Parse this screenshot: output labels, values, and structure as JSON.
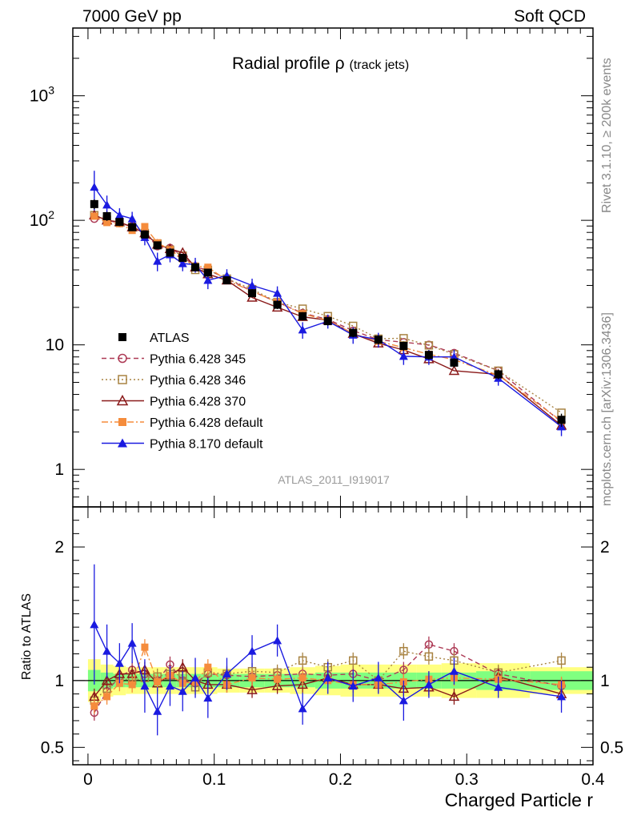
{
  "header": {
    "left": "7000 GeV pp",
    "right": "Soft QCD"
  },
  "sidebar": {
    "top": "Rivet 3.1.10, ≥ 200k events",
    "bottom": "mcplots.cern.ch [arXiv:1306.3436]"
  },
  "colors": {
    "atlas": "#000000",
    "p345": "#ad3a55",
    "p346": "#a88342",
    "p370": "#8a1a1a",
    "p6def": "#f58c3c",
    "p8def": "#1a1ae0",
    "band_yellow": "#ffff80",
    "band_green": "#80ff80"
  },
  "chart_data": [
    {
      "type": "line",
      "title": "Radial profile",
      "title_symbol": "ρ",
      "title_suffix": "(track jets)",
      "xlabel": "Charged Particle r",
      "ylabel": "",
      "yscale": "log",
      "xlim": [
        -0.012,
        0.4
      ],
      "ylim": [
        0.5,
        3500
      ],
      "x_ticks": [
        "0",
        "0.1",
        "0.2",
        "0.3",
        "0.4"
      ],
      "y_ticks": [
        {
          "value": 1,
          "label": "1"
        },
        {
          "value": 10,
          "label": "10"
        },
        {
          "value": 100,
          "label": "10",
          "exp": "2"
        },
        {
          "value": 1000,
          "label": "10",
          "exp": "3"
        }
      ],
      "watermark": "ATLAS_2011_I919017",
      "x": [
        0.005,
        0.015,
        0.025,
        0.035,
        0.045,
        0.055,
        0.065,
        0.075,
        0.085,
        0.095,
        0.11,
        0.13,
        0.15,
        0.17,
        0.19,
        0.21,
        0.23,
        0.25,
        0.27,
        0.29,
        0.325,
        0.375
      ],
      "series": [
        {
          "key": "atlas",
          "name": "ATLAS",
          "marker": "square-filled",
          "line": "none",
          "values": [
            135,
            108,
            97,
            88,
            77,
            63,
            55,
            50,
            42,
            38,
            33,
            26,
            21,
            17,
            15.5,
            12.5,
            11,
            9.8,
            8.3,
            7.2,
            5.8,
            2.5
          ],
          "err": [
            12,
            9,
            7,
            6,
            5,
            4.5,
            4,
            3.5,
            3,
            2.7,
            2.3,
            1.9,
            1.6,
            1.3,
            1.2,
            1,
            0.9,
            0.8,
            0.7,
            0.6,
            0.5,
            0.3
          ]
        },
        {
          "key": "p345",
          "name": "Pythia 6.428 345",
          "marker": "circle-open",
          "line": "dashed",
          "values": [
            103,
            100,
            95,
            90,
            78,
            62,
            60,
            52,
            42,
            40,
            34,
            27,
            22,
            18,
            16,
            13,
            11,
            10.5,
            10,
            8.6,
            6.2,
            2.4
          ],
          "ratio": [
            0.76,
            0.92,
            1.03,
            1.08,
            1.05,
            1.0,
            1.12,
            1.0,
            0.98,
            1.05,
            1.04,
            1.03,
            1.04,
            1.05,
            1.04,
            1.05,
            1.0,
            1.08,
            1.27,
            1.22,
            1.05,
            0.96
          ]
        },
        {
          "key": "p346",
          "name": "Pythia 6.428 346",
          "marker": "square-open",
          "line": "dotted",
          "values": [
            110,
            101,
            96,
            88,
            79,
            65,
            58,
            52,
            40,
            40,
            34,
            28,
            22,
            19.5,
            17,
            14.2,
            11.2,
            11.3,
            9.9,
            8.4,
            6.2,
            2.85
          ],
          "ratio": [
            0.85,
            0.94,
            1.02,
            1.0,
            1.02,
            1.03,
            1.05,
            1.04,
            0.95,
            1.06,
            1.05,
            1.07,
            1.06,
            1.15,
            1.1,
            1.15,
            1.0,
            1.22,
            1.18,
            1.15,
            1.06,
            1.15
          ]
        },
        {
          "key": "p370",
          "name": "Pythia 6.428 370",
          "marker": "triangle-open",
          "line": "solid",
          "values": [
            110,
            100,
            97,
            88,
            79,
            64,
            59,
            55,
            42,
            37,
            33,
            24,
            20,
            16.8,
            15.8,
            12.3,
            10.3,
            9.1,
            7.7,
            6.2,
            5.8,
            2.25
          ],
          "ratio": [
            0.88,
            1.0,
            1.05,
            1.05,
            1.08,
            0.98,
            1.04,
            1.1,
            1.0,
            0.97,
            0.97,
            0.93,
            0.96,
            0.97,
            1.02,
            0.97,
            0.97,
            0.94,
            0.95,
            0.88,
            1.03,
            0.9
          ]
        },
        {
          "key": "p6def",
          "name": "Pythia 6.428 default",
          "marker": "square-filled",
          "line": "dashdot",
          "values": [
            108,
            96,
            94,
            83,
            89,
            66,
            58,
            49,
            43,
            42,
            33,
            27,
            22,
            17.8,
            15.7,
            12.3,
            10.7,
            9.5,
            8.4,
            7.6,
            5.7,
            2.45
          ],
          "ratio": [
            0.81,
            0.88,
            0.98,
            0.97,
            1.25,
            0.99,
            1.04,
            0.98,
            0.99,
            1.1,
            0.97,
            1.02,
            1.01,
            1.02,
            1.0,
            0.97,
            0.97,
            0.99,
            1.01,
            1.02,
            1.01,
            0.97
          ]
        },
        {
          "key": "p8def",
          "name": "Pythia 8.170 default",
          "marker": "triangle-filled",
          "line": "solid",
          "values": [
            185,
            133,
            110,
            103,
            73,
            47,
            53,
            45,
            44,
            33,
            36,
            30,
            26,
            13.2,
            15.5,
            12,
            11,
            8.1,
            8,
            8,
            5.4,
            2.2
          ],
          "err": [
            65,
            25,
            15,
            14,
            10,
            8,
            7,
            6,
            6,
            5,
            4.5,
            4,
            3.5,
            2,
            2,
            1.8,
            1.5,
            1.2,
            1.1,
            1.1,
            0.7,
            0.35
          ],
          "ratio": [
            1.42,
            1.22,
            1.13,
            1.28,
            0.96,
            0.77,
            0.96,
            0.92,
            1.02,
            0.87,
            1.05,
            1.22,
            1.3,
            0.79,
            1.02,
            0.96,
            1.02,
            0.85,
            0.97,
            1.07,
            0.95,
            0.88
          ],
          "ratio_err": [
            0.45,
            0.2,
            0.15,
            0.15,
            0.2,
            0.18,
            0.15,
            0.15,
            0.15,
            0.15,
            0.12,
            0.12,
            0.12,
            0.12,
            0.12,
            0.12,
            0.12,
            0.15,
            0.1,
            0.1,
            0.08,
            0.12
          ]
        }
      ]
    },
    {
      "type": "line",
      "title": "",
      "xlabel": "Charged Particle r",
      "ylabel": "Ratio to ATLAS",
      "xlim": [
        -0.012,
        0.4
      ],
      "ylim": [
        0.37,
        2.3
      ],
      "y_ticks": [
        {
          "value": 0.5,
          "label": "0.5"
        },
        {
          "value": 1,
          "label": "1"
        },
        {
          "value": 2,
          "label": "2"
        }
      ],
      "bands": {
        "yellow_half_width": [
          0.16,
          0.12,
          0.11,
          0.1,
          0.1,
          0.1,
          0.1,
          0.1,
          0.1,
          0.1,
          0.09,
          0.09,
          0.09,
          0.1,
          0.11,
          0.12,
          0.12,
          0.12,
          0.12,
          0.13,
          0.13,
          0.1
        ],
        "green_half_width": [
          0.08,
          0.06,
          0.05,
          0.05,
          0.05,
          0.05,
          0.05,
          0.05,
          0.05,
          0.05,
          0.05,
          0.05,
          0.05,
          0.05,
          0.06,
          0.06,
          0.06,
          0.06,
          0.06,
          0.06,
          0.07,
          0.07
        ]
      }
    }
  ]
}
